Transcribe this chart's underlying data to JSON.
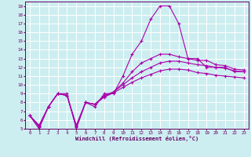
{
  "xlabel": "Windchill (Refroidissement éolien,°C)",
  "background_color": "#cdeef0",
  "grid_color": "#ffffff",
  "line_color": "#aa00aa",
  "xlim": [
    -0.5,
    23.5
  ],
  "ylim": [
    5,
    19.5
  ],
  "xticks": [
    0,
    1,
    2,
    3,
    4,
    5,
    6,
    7,
    8,
    9,
    10,
    11,
    12,
    13,
    14,
    15,
    16,
    17,
    18,
    19,
    20,
    21,
    22,
    23
  ],
  "yticks": [
    5,
    6,
    7,
    8,
    9,
    10,
    11,
    12,
    13,
    14,
    15,
    16,
    17,
    18,
    19
  ],
  "lines": [
    [
      6.5,
      5.0,
      7.5,
      9.0,
      9.0,
      5.0,
      8.0,
      7.5,
      9.0,
      9.0,
      11.0,
      13.5,
      15.0,
      17.5,
      19.0,
      19.0,
      17.0,
      13.0,
      13.0,
      12.0,
      12.0,
      12.0,
      11.5,
      11.5
    ],
    [
      6.5,
      5.2,
      7.5,
      9.0,
      8.8,
      5.2,
      8.0,
      7.8,
      8.8,
      9.2,
      10.2,
      11.5,
      12.5,
      13.0,
      13.5,
      13.5,
      13.2,
      13.0,
      12.8,
      12.8,
      12.3,
      12.2,
      11.8,
      11.7
    ],
    [
      6.5,
      5.3,
      7.5,
      9.0,
      8.8,
      5.3,
      8.0,
      7.8,
      8.7,
      9.2,
      10.0,
      10.8,
      11.5,
      12.0,
      12.5,
      12.7,
      12.7,
      12.5,
      12.3,
      12.2,
      12.0,
      11.9,
      11.6,
      11.5
    ],
    [
      6.5,
      5.4,
      7.5,
      9.0,
      8.8,
      5.4,
      8.0,
      7.8,
      8.6,
      9.1,
      9.7,
      10.3,
      10.8,
      11.2,
      11.6,
      11.8,
      11.8,
      11.7,
      11.4,
      11.3,
      11.1,
      11.0,
      10.9,
      10.8
    ]
  ]
}
